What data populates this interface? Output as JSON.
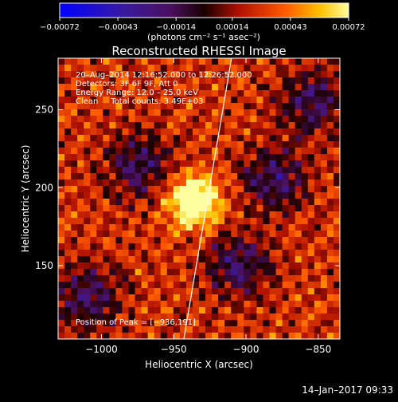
{
  "chart_data": {
    "type": "heatmap",
    "title": "Reconstructed RHESSI Image",
    "xlabel": "Heliocentric X (arcsec)",
    "ylabel": "Heliocentric Y (arcsec)",
    "xlim": [
      -1030,
      -835
    ],
    "ylim": [
      103,
      283
    ],
    "xticks": [
      -1000,
      -950,
      -900,
      -850
    ],
    "yticks": [
      150,
      200,
      250
    ],
    "xtick_labels": [
      "−1000",
      "−950",
      "−900",
      "−850"
    ],
    "ytick_labels": [
      "150",
      "200",
      "250"
    ],
    "colorbar": {
      "ticks": [
        -0.00072,
        -0.00043,
        -0.00014,
        0.00014,
        0.00043,
        0.00072
      ],
      "tick_labels": [
        "−0.00072",
        "−0.00043",
        "−0.00014",
        "0.00014",
        "0.00043",
        "0.00072"
      ],
      "unit": "(photons cm⁻² s⁻¹ asec⁻²)",
      "range": [
        -0.00072,
        0.00072
      ]
    },
    "annotations": {
      "line1": "20–Aug–2014 12:16:52.000 to 12:26:52.000",
      "line2": "Detectors: 3F 6F 9F, Att 0",
      "line3": "Energy Range: 12.0 – 25.0 keV",
      "line4": "Clean     Total counts: 3.49E+03",
      "peak": "Position of Peak = [−936,191]"
    },
    "peak": {
      "x": -936,
      "y": 191
    },
    "limb_line": [
      [
        -943,
        103
      ],
      [
        -910,
        283
      ]
    ],
    "grid_on": false
  },
  "timestamp": "14–Jan–2017 09:33"
}
